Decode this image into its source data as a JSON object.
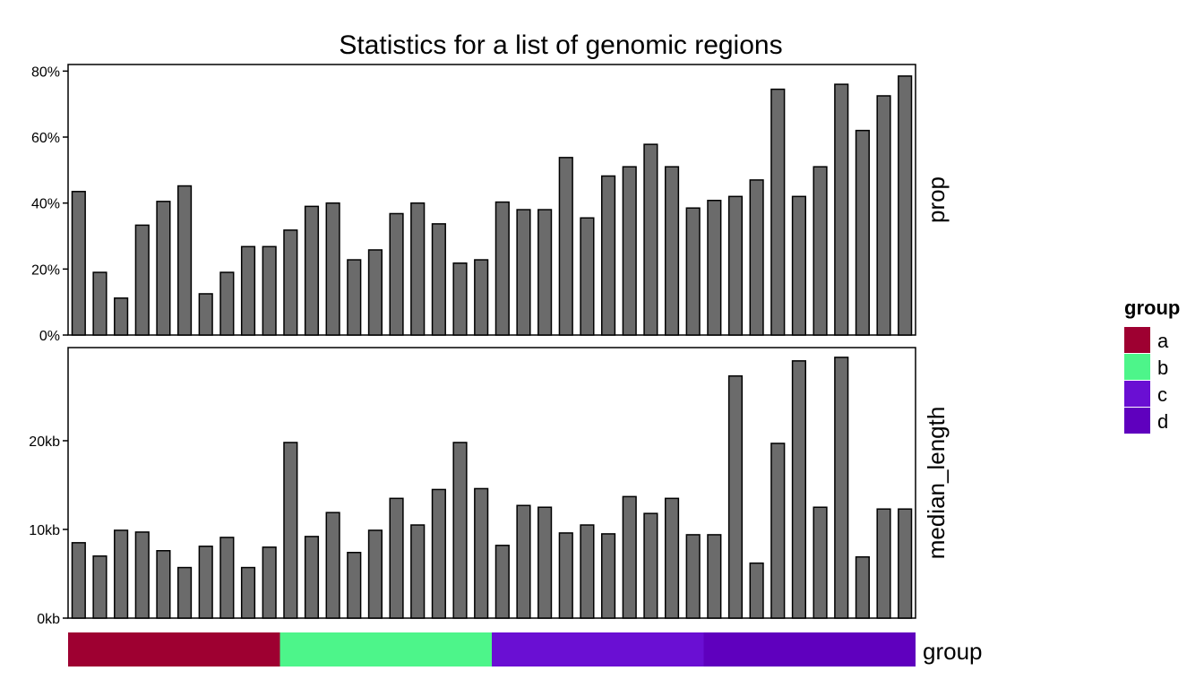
{
  "chart_data": {
    "type": "bar",
    "title": "Statistics for a list of genomic regions",
    "panels": [
      {
        "name": "prop",
        "ylim": [
          0,
          0.82
        ],
        "yticks": [
          0,
          0.2,
          0.4,
          0.6,
          0.8
        ],
        "ytick_labels": [
          "0%",
          "20%",
          "40%",
          "60%",
          "80%"
        ],
        "values": [
          0.435,
          0.19,
          0.112,
          0.333,
          0.405,
          0.452,
          0.125,
          0.19,
          0.268,
          0.268,
          0.318,
          0.39,
          0.4,
          0.228,
          0.258,
          0.368,
          0.4,
          0.337,
          0.218,
          0.228,
          0.403,
          0.38,
          0.38,
          0.538,
          0.355,
          0.482,
          0.51,
          0.578,
          0.51,
          0.385,
          0.408,
          0.42,
          0.47,
          0.745,
          0.42,
          0.51,
          0.76,
          0.62,
          0.725,
          0.785
        ]
      },
      {
        "name": "median_length",
        "ylim": [
          0,
          30500
        ],
        "yticks": [
          0,
          10000,
          20000
        ],
        "ytick_labels": [
          "0kb",
          "10kb",
          "20kb"
        ],
        "values": [
          8500,
          7000,
          9900,
          9700,
          7600,
          5700,
          8100,
          9100,
          5700,
          8000,
          19800,
          9200,
          11900,
          7400,
          9900,
          13500,
          10500,
          14500,
          19800,
          14600,
          8200,
          12700,
          12500,
          9600,
          10500,
          9500,
          13700,
          11800,
          13500,
          9400,
          9400,
          27300,
          6200,
          19700,
          29000,
          12500,
          29400,
          6900,
          12300,
          12300
        ]
      }
    ],
    "group_strip": {
      "label": "group",
      "segments": [
        {
          "name": "a",
          "start": 0,
          "end": 10,
          "color": "#9E0031"
        },
        {
          "name": "b",
          "start": 10,
          "end": 20,
          "color": "#4DF58A"
        },
        {
          "name": "c",
          "start": 20,
          "end": 30,
          "color": "#6A0FD3"
        },
        {
          "name": "d",
          "start": 30,
          "end": 40,
          "color": "#5F00BE"
        }
      ]
    },
    "legend": {
      "title": "group",
      "placement": "right",
      "items": [
        {
          "label": "a",
          "color": "#9E0031"
        },
        {
          "label": "b",
          "color": "#4DF58A"
        },
        {
          "label": "c",
          "color": "#6A0FD3"
        },
        {
          "label": "d",
          "color": "#5F00BE"
        }
      ]
    },
    "bar_color": "#6B6B6B",
    "grid": false
  }
}
